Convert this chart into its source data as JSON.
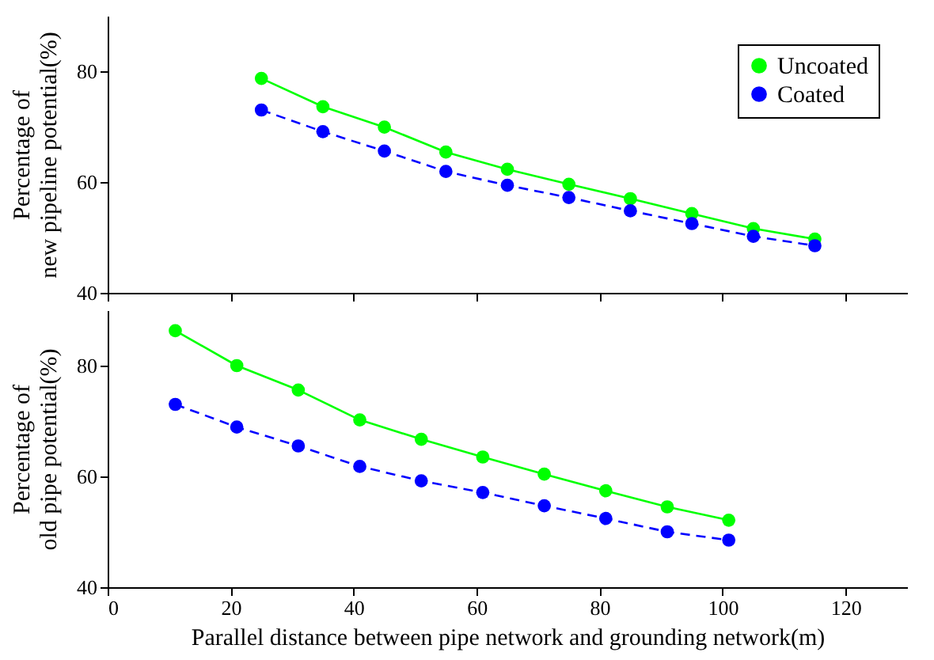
{
  "chart_data": [
    {
      "type": "line",
      "ylabel": "Percentage of\nnew pipeline potential(%)",
      "x": [
        25,
        35,
        45,
        55,
        65,
        75,
        85,
        95,
        105,
        115
      ],
      "xlim": [
        0,
        130
      ],
      "xticks": [
        0,
        20,
        40,
        60,
        80,
        100,
        120
      ],
      "ylim": [
        40,
        90
      ],
      "yticks": [
        40,
        60,
        80
      ],
      "tick_labels": "y",
      "legend": "top right",
      "marker": "circle",
      "series": [
        {
          "name": "Uncoated",
          "color": "#00ff00",
          "line_style": "solid",
          "values": [
            78.7,
            73.6,
            69.9,
            65.4,
            62.3,
            59.6,
            57.0,
            54.3,
            51.6,
            49.7
          ]
        },
        {
          "name": "Coated",
          "color": "#0000ff",
          "line_style": "dashed",
          "values": [
            73.0,
            69.1,
            65.6,
            61.9,
            59.4,
            57.2,
            54.8,
            52.5,
            50.2,
            48.5
          ]
        }
      ]
    },
    {
      "type": "line",
      "xlabel": "Parallel distance between pipe network and grounding network(m)",
      "ylabel": "Percentage of\nold pipe potential(%)",
      "x": [
        11,
        21,
        31,
        41,
        51,
        61,
        71,
        81,
        91,
        101
      ],
      "xlim": [
        0,
        130
      ],
      "xticks": [
        0,
        20,
        40,
        60,
        80,
        100,
        120
      ],
      "ylim": [
        40,
        90
      ],
      "yticks": [
        40,
        60,
        80
      ],
      "marker": "circle",
      "series": [
        {
          "color": "#00ff00",
          "line_style": "solid",
          "values": [
            86.3,
            80.0,
            75.6,
            70.2,
            66.7,
            63.5,
            60.4,
            57.4,
            54.5,
            52.1
          ]
        },
        {
          "color": "#0000ff",
          "line_style": "dashed",
          "values": [
            73.0,
            68.9,
            65.5,
            61.8,
            59.2,
            57.1,
            54.7,
            52.4,
            50.0,
            48.5
          ]
        }
      ]
    }
  ]
}
